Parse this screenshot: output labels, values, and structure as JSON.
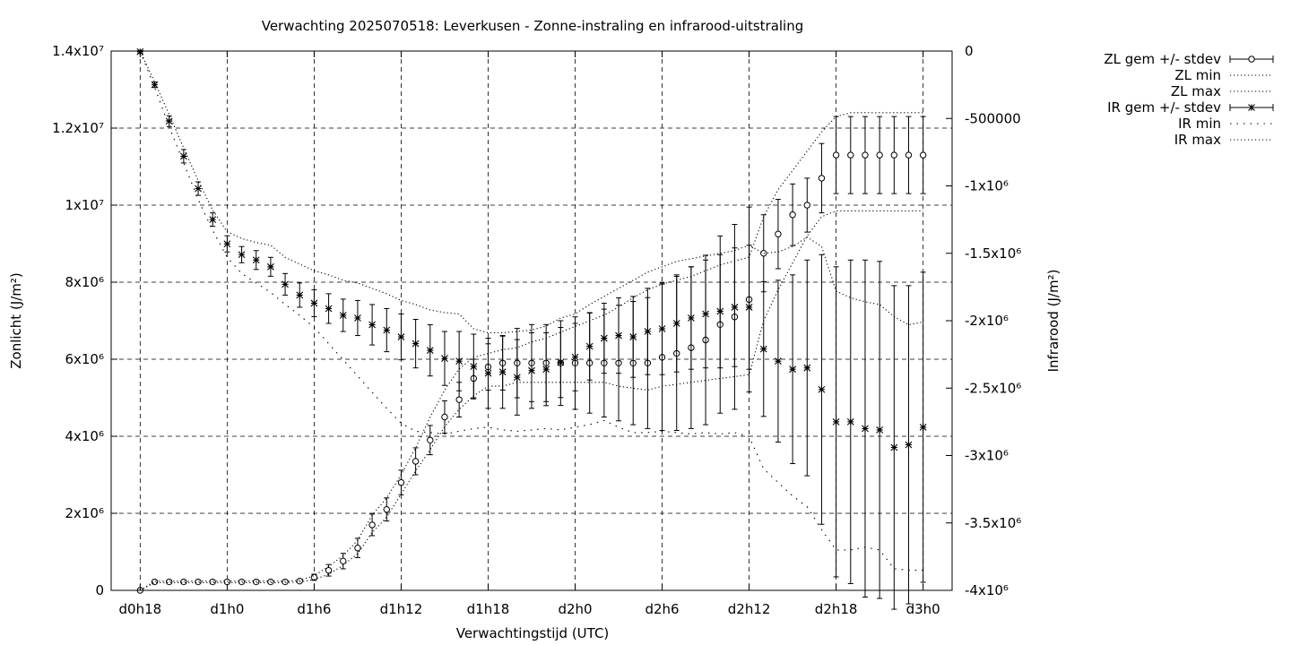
{
  "chart_data": {
    "type": "line",
    "title": "Verwachting 2025070518: Leverkusen - Zonne-instraling en infrarood-uitstraling",
    "xlabel": "Verwachtingstijd (UTC)",
    "ylabel": "Zonlicht (J/m²)",
    "y2label": "Infrarood (J/m²)",
    "x_unit": "hours since d0h18",
    "x_ticks": [
      "d0h18",
      "d1h0",
      "d1h6",
      "d1h12",
      "d1h18",
      "d2h0",
      "d2h6",
      "d2h12",
      "d2h18",
      "d3h0"
    ],
    "xlim": [
      -2,
      56
    ],
    "ylim": [
      0,
      14000000
    ],
    "y2lim": [
      -4000000,
      0
    ],
    "y_ticks": [
      {
        "value": 0,
        "label": "0"
      },
      {
        "value": 2000000,
        "label": "2x10⁶"
      },
      {
        "value": 4000000,
        "label": "4x10⁶"
      },
      {
        "value": 6000000,
        "label": "6x10⁶"
      },
      {
        "value": 8000000,
        "label": "8x10⁶"
      },
      {
        "value": 10000000,
        "label": "1x10⁷"
      },
      {
        "value": 12000000,
        "label": "1.2x10⁷"
      },
      {
        "value": 14000000,
        "label": "1.4x10⁷"
      }
    ],
    "y2_ticks": [
      {
        "value": 0,
        "label": "0"
      },
      {
        "value": -500000,
        "label": "-500000"
      },
      {
        "value": -1000000,
        "label": "-1x10⁶"
      },
      {
        "value": -1500000,
        "label": "-1.5x10⁶"
      },
      {
        "value": -2000000,
        "label": "-2x10⁶"
      },
      {
        "value": -2500000,
        "label": "-2.5x10⁶"
      },
      {
        "value": -3000000,
        "label": "-3x10⁶"
      },
      {
        "value": -3500000,
        "label": "-3.5x10⁶"
      },
      {
        "value": -4000000,
        "label": "-4x10⁶"
      }
    ],
    "grid": true,
    "legend_position": "outside-top-right",
    "x": [
      0,
      1,
      2,
      3,
      4,
      5,
      6,
      7,
      8,
      9,
      10,
      11,
      12,
      13,
      14,
      15,
      16,
      17,
      18,
      19,
      20,
      21,
      22,
      23,
      24,
      25,
      26,
      27,
      28,
      29,
      30,
      31,
      32,
      33,
      34,
      35,
      36,
      37,
      38,
      39,
      40,
      41,
      42,
      43,
      44,
      45,
      46,
      47,
      48,
      49,
      50,
      51,
      52,
      53,
      54
    ],
    "series": [
      {
        "name": "ZL gem +/- stdev",
        "axis": "y",
        "style": "circle-errorbars",
        "values": [
          0,
          220000,
          220000,
          220000,
          220000,
          220000,
          220000,
          220000,
          220000,
          220000,
          220000,
          240000,
          340000,
          520000,
          760000,
          1100000,
          1700000,
          2100000,
          2800000,
          3350000,
          3900000,
          4500000,
          4950000,
          5500000,
          5800000,
          5900000,
          5900000,
          5900000,
          5900000,
          5900000,
          5900000,
          5900000,
          5900000,
          5900000,
          5900000,
          5900000,
          6050000,
          6150000,
          6300000,
          6500000,
          6900000,
          7100000,
          7550000,
          8750000,
          9250000,
          9750000,
          10000000,
          10700000,
          11300000,
          11300000,
          11300000,
          11300000,
          11300000,
          11300000,
          11300000
        ],
        "err": [
          0,
          30000,
          30000,
          30000,
          30000,
          30000,
          30000,
          30000,
          30000,
          30000,
          30000,
          40000,
          80000,
          150000,
          200000,
          250000,
          280000,
          300000,
          320000,
          350000,
          380000,
          420000,
          450000,
          500000,
          600000,
          700000,
          900000,
          1000000,
          1000000,
          1100000,
          1200000,
          1300000,
          1400000,
          1500000,
          1600000,
          1700000,
          1900000,
          2000000,
          2100000,
          2200000,
          2300000,
          2400000,
          2400000,
          1000000,
          900000,
          800000,
          700000,
          900000,
          1000000,
          1000000,
          1000000,
          1000000,
          1000000,
          1000000,
          1000000
        ]
      },
      {
        "name": "ZL min",
        "axis": "y",
        "style": "dotted",
        "values": [
          0,
          200000,
          200000,
          200000,
          200000,
          200000,
          200000,
          200000,
          200000,
          200000,
          200000,
          220000,
          280000,
          420000,
          650000,
          950000,
          1500000,
          1900000,
          2500000,
          3100000,
          3650000,
          4250000,
          4700000,
          5050000,
          5300000,
          5300000,
          5400000,
          5400000,
          5400000,
          5400000,
          5400000,
          5400000,
          5400000,
          5300000,
          5250000,
          5200000,
          5300000,
          5350000,
          5400000,
          5450000,
          5500000,
          5550000,
          5600000,
          7000000,
          7800000,
          8500000,
          9200000,
          9700000,
          9850000,
          9850000,
          9850000,
          9850000,
          9850000,
          9850000,
          9850000
        ]
      },
      {
        "name": "ZL max",
        "axis": "y",
        "style": "dotted",
        "values": [
          0,
          240000,
          240000,
          240000,
          240000,
          240000,
          240000,
          240000,
          240000,
          240000,
          240000,
          260000,
          380000,
          620000,
          900000,
          1300000,
          1950000,
          2400000,
          3000000,
          3700000,
          4500000,
          5200000,
          5750000,
          6050000,
          6150000,
          6250000,
          6300000,
          6450000,
          6550000,
          6700000,
          6850000,
          7000000,
          7150000,
          7350000,
          7600000,
          7800000,
          7950000,
          8050000,
          8150000,
          8300000,
          8450000,
          8550000,
          8650000,
          9700000,
          10400000,
          10900000,
          11400000,
          11900000,
          12300000,
          12400000,
          12400000,
          12400000,
          12400000,
          12400000,
          12400000
        ]
      },
      {
        "name": "IR gem +/- stdev",
        "axis": "y2",
        "style": "star-errorbars",
        "values": [
          -5000,
          -250000,
          -520000,
          -780000,
          -1020000,
          -1250000,
          -1430000,
          -1510000,
          -1550000,
          -1600000,
          -1730000,
          -1810000,
          -1870000,
          -1910000,
          -1960000,
          -1980000,
          -2030000,
          -2070000,
          -2120000,
          -2170000,
          -2220000,
          -2280000,
          -2300000,
          -2340000,
          -2390000,
          -2380000,
          -2420000,
          -2370000,
          -2360000,
          -2310000,
          -2270000,
          -2190000,
          -2130000,
          -2110000,
          -2120000,
          -2080000,
          -2060000,
          -2020000,
          -1980000,
          -1950000,
          -1930000,
          -1900000,
          -1900000,
          -2210000,
          -2300000,
          -2360000,
          -2350000,
          -2510000,
          -2750000,
          -2750000,
          -2800000,
          -2810000,
          -2940000,
          -2920000,
          -2790000
        ],
        "err": [
          10000,
          20000,
          40000,
          50000,
          50000,
          50000,
          60000,
          60000,
          70000,
          70000,
          80000,
          90000,
          100000,
          110000,
          120000,
          130000,
          150000,
          160000,
          170000,
          180000,
          190000,
          200000,
          220000,
          240000,
          260000,
          270000,
          280000,
          280000,
          270000,
          260000,
          250000,
          250000,
          260000,
          280000,
          300000,
          320000,
          340000,
          360000,
          380000,
          400000,
          420000,
          440000,
          460000,
          500000,
          600000,
          700000,
          800000,
          1000000,
          1150000,
          1200000,
          1250000,
          1250000,
          1200000,
          1180000,
          1150000
        ]
      },
      {
        "name": "IR min",
        "axis": "y2",
        "style": "sparse-dotted",
        "values": [
          0,
          -270000,
          -560000,
          -830000,
          -1100000,
          -1330000,
          -1530000,
          -1650000,
          -1720000,
          -1790000,
          -1880000,
          -1960000,
          -2050000,
          -2170000,
          -2290000,
          -2410000,
          -2530000,
          -2650000,
          -2760000,
          -2820000,
          -2830000,
          -2840000,
          -2820000,
          -2800000,
          -2790000,
          -2810000,
          -2820000,
          -2810000,
          -2800000,
          -2810000,
          -2790000,
          -2770000,
          -2740000,
          -2790000,
          -2830000,
          -2830000,
          -2820000,
          -2830000,
          -2840000,
          -2830000,
          -2840000,
          -2830000,
          -2860000,
          -3100000,
          -3200000,
          -3300000,
          -3380000,
          -3550000,
          -3700000,
          -3700000,
          -3680000,
          -3700000,
          -3840000,
          -3850000,
          -3850000
        ]
      },
      {
        "name": "IR max",
        "axis": "y2",
        "style": "dotted",
        "values": [
          0,
          -230000,
          -470000,
          -720000,
          -960000,
          -1180000,
          -1340000,
          -1390000,
          -1420000,
          -1440000,
          -1530000,
          -1580000,
          -1630000,
          -1660000,
          -1700000,
          -1720000,
          -1760000,
          -1800000,
          -1850000,
          -1880000,
          -1920000,
          -1940000,
          -1950000,
          -2060000,
          -2090000,
          -2090000,
          -2080000,
          -2070000,
          -2040000,
          -1980000,
          -1950000,
          -1880000,
          -1820000,
          -1760000,
          -1700000,
          -1640000,
          -1600000,
          -1560000,
          -1540000,
          -1520000,
          -1500000,
          -1480000,
          -1440000,
          -1500000,
          -1490000,
          -1450000,
          -1380000,
          -1450000,
          -1780000,
          -1830000,
          -1860000,
          -1880000,
          -1970000,
          -2030000,
          -2010000
        ]
      }
    ]
  }
}
